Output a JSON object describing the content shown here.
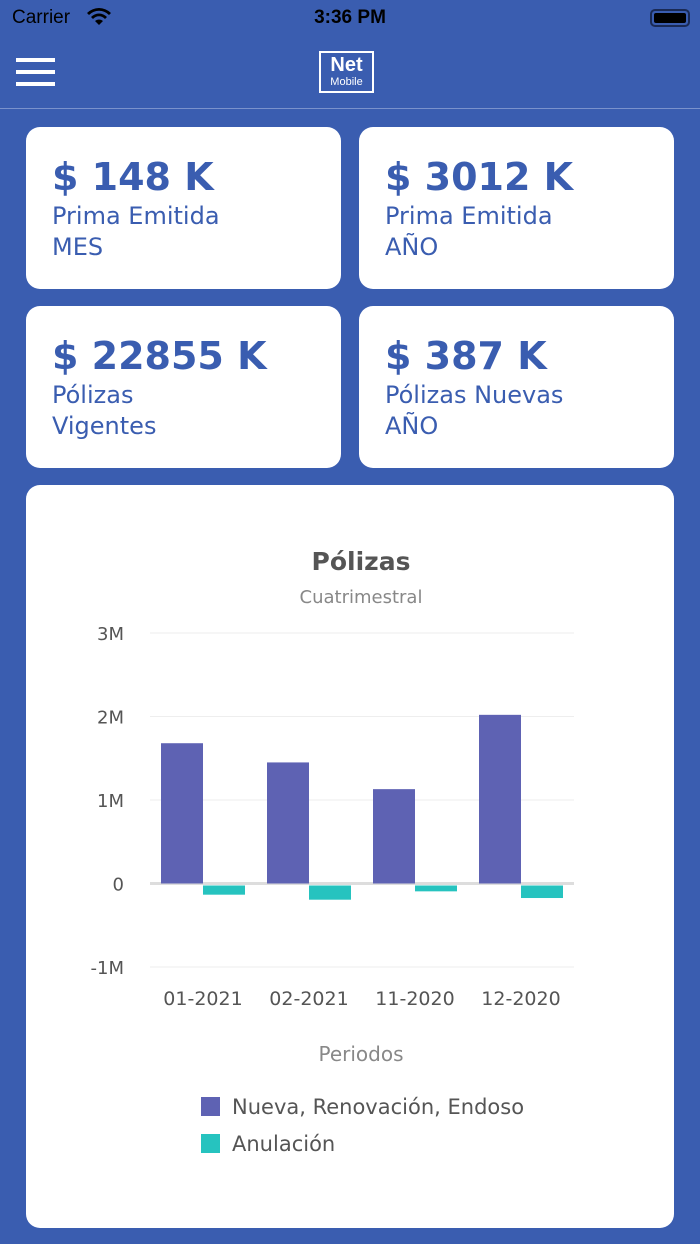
{
  "status_bar": {
    "carrier": "Carrier",
    "time": "3:36 PM"
  },
  "nav": {
    "logo_line1": "Net",
    "logo_line2": "Mobile"
  },
  "cards": [
    {
      "value": "$ 148 K",
      "label1": "Prima Emitida",
      "label2": "MES"
    },
    {
      "value": "$ 3012 K",
      "label1": "Prima Emitida",
      "label2": "AÑO"
    },
    {
      "value": "$ 22855 K",
      "label1": "Pólizas",
      "label2": "Vigentes"
    },
    {
      "value": "$ 387 K",
      "label1": "Pólizas Nuevas",
      "label2": "AÑO"
    }
  ],
  "chart_data": {
    "type": "bar",
    "title": "Pólizas",
    "subtitle": "Cuatrimestral",
    "xlabel": "Periodos",
    "ylabel": "",
    "categories": [
      "01-2021",
      "02-2021",
      "11-2020",
      "12-2020"
    ],
    "yticks": [
      "3M",
      "2M",
      "1M",
      "0",
      "-1M"
    ],
    "ylim": [
      -1000000,
      3000000
    ],
    "grid": true,
    "legend_position": "bottom",
    "series": [
      {
        "name": "Nueva, Renovación, Endoso",
        "color": "#5e62b3",
        "values": [
          1680000,
          1450000,
          1130000,
          2020000
        ]
      },
      {
        "name": "Anulación",
        "color": "#26c3bf",
        "values": [
          -110000,
          -170000,
          -70000,
          -150000
        ]
      }
    ]
  }
}
